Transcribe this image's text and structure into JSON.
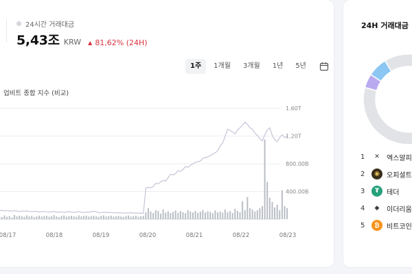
{
  "stats": {
    "label": "24시간 거래대금",
    "value": "5,43조",
    "unit": "KRW",
    "change_arrow": "▲",
    "change": "81,62% (24H)",
    "change_color": "#d8333f"
  },
  "period_tabs": [
    {
      "label": "1주",
      "active": true
    },
    {
      "label": "1개월",
      "active": false
    },
    {
      "label": "3개월",
      "active": false
    },
    {
      "label": "1년",
      "active": false
    },
    {
      "label": "5년",
      "active": false
    }
  ],
  "calendar_icon": "calendar-icon",
  "chart_legend": "업비트 종합 지수 (비교)",
  "chart_data": {
    "type": "bar",
    "title": "",
    "xlabel": "",
    "ylabel": "",
    "x_ticks": [
      "08/17",
      "08/18",
      "08/19",
      "08/20",
      "08/21",
      "08/22",
      "08/23"
    ],
    "y_ticks": [
      "400.00B",
      "800.00B",
      "1.20T",
      "1.60T"
    ],
    "y_tick_values": [
      400,
      800,
      1200,
      1600
    ],
    "ylim": [
      0,
      1800
    ],
    "units": "B KRW",
    "series": [
      {
        "name": "24시간 거래대금",
        "type": "bar",
        "values": [
          40,
          50,
          30,
          55,
          35,
          45,
          25,
          60,
          40,
          50,
          45,
          35,
          55,
          40,
          48,
          30,
          42,
          52,
          38,
          46,
          50,
          36,
          44,
          58,
          40,
          32,
          48,
          54,
          38,
          45,
          50,
          42,
          36,
          55,
          40,
          46,
          52,
          38,
          44,
          50,
          41,
          35,
          48,
          56,
          39,
          45,
          51,
          37,
          43,
          49,
          40,
          34,
          47,
          53,
          38,
          44,
          50,
          36,
          42,
          48,
          100,
          160,
          110,
          90,
          130,
          120,
          80,
          140,
          95,
          115,
          88,
          105,
          125,
          92,
          118,
          100,
          86,
          130,
          110,
          98,
          120,
          90,
          108,
          132,
          96,
          115,
          104,
          88,
          126,
          100,
          112,
          94,
          140,
          102,
          118,
          90,
          150,
          120,
          100,
          260,
          130,
          320,
          160,
          140,
          110,
          130,
          160,
          190,
          1150,
          540,
          310,
          250,
          170,
          210,
          130,
          420,
          190,
          160
        ],
        "color": "#b9bdc4"
      },
      {
        "name": "업비트 종합 지수 (비교)",
        "type": "line",
        "values": [
          130,
          122,
          128,
          118,
          126,
          120,
          116,
          124,
          118,
          110,
          118,
          114,
          120,
          112,
          108,
          116,
          110,
          104,
          110,
          112,
          106,
          102,
          108,
          110,
          104,
          100,
          106,
          98,
          104,
          110,
          102,
          98,
          104,
          108,
          100,
          96,
          104,
          100,
          108,
          114,
          110,
          92,
          96,
          98,
          100,
          94,
          96,
          92,
          90,
          94,
          92,
          86,
          90,
          92,
          94,
          88,
          90,
          86,
          88,
          84,
          450,
          460,
          455,
          470,
          520,
          510,
          540,
          560,
          550,
          600,
          650,
          640,
          660,
          700,
          690,
          720,
          760,
          750,
          780,
          800,
          820,
          830,
          840,
          880,
          890,
          900,
          920,
          940,
          960,
          990,
          1060,
          1100,
          1200,
          1300,
          1280,
          1260,
          1230,
          1290,
          1320,
          1360,
          1400,
          1370,
          1320,
          1300,
          1240,
          1210,
          1160,
          1130,
          1220,
          1290,
          1320,
          1210,
          1150,
          1120,
          1180,
          1220,
          1180,
          1200
        ],
        "color": "#c9c2d6"
      }
    ],
    "grid": true
  },
  "side": {
    "title": "24H 거래대금",
    "donut": [
      {
        "value": 88,
        "color": "#e1e3e7"
      },
      {
        "value": 5,
        "color": "#b9aaf0"
      },
      {
        "value": 7,
        "color": "#8cc6f2"
      }
    ],
    "ranks": [
      {
        "num": "1",
        "icon": "x-icon",
        "icon_glyph": "✕",
        "icon_bg": "#ffffff",
        "icon_fg": "#333333",
        "name": "엑스알피"
      },
      {
        "num": "2",
        "icon": "opmt-icon",
        "icon_glyph": "◉",
        "icon_bg": "#3a2e1a",
        "icon_fg": "#e8c25a",
        "name": "오피셜트"
      },
      {
        "num": "3",
        "icon": "tether-icon",
        "icon_glyph": "₮",
        "icon_bg": "#26a17b",
        "icon_fg": "#ffffff",
        "name": "테더"
      },
      {
        "num": "4",
        "icon": "ethereum-icon",
        "icon_glyph": "◆",
        "icon_bg": "#ffffff",
        "icon_fg": "#3c3c3d",
        "name": "이더리움"
      },
      {
        "num": "5",
        "icon": "bitcoin-icon",
        "icon_glyph": "₿",
        "icon_bg": "#f7931a",
        "icon_fg": "#ffffff",
        "name": "비트코인"
      }
    ]
  }
}
